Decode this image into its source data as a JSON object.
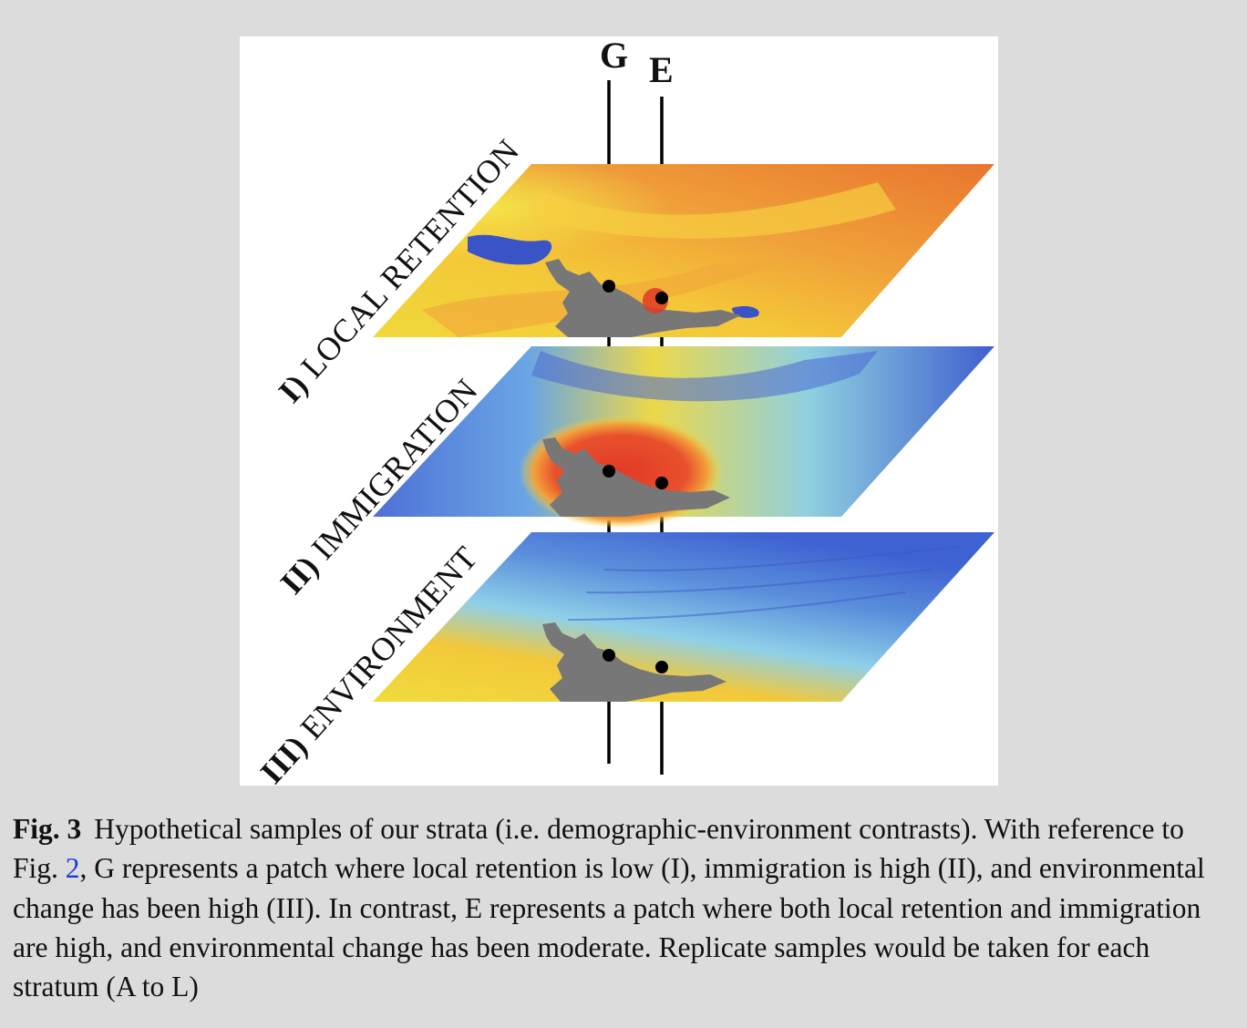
{
  "figure": {
    "markers": {
      "g_label": "G",
      "e_label": "E"
    },
    "layers": [
      {
        "numeral": "I)",
        "name": "LOCAL RETENTION"
      },
      {
        "numeral": "II)",
        "name": "IMMIGRATION"
      },
      {
        "numeral": "III)",
        "name": "ENVIRONMENT"
      }
    ]
  },
  "caption": {
    "label": "Fig. 3",
    "text_before_ref": "Hypothetical samples of our strata (i.e. demographic-environment contrasts). With reference to Fig. ",
    "ref": "2",
    "text_after_ref": ", G represents a patch where local retention is low (I), immigration is high (II), and environmental change has been high (III). In contrast, E represents a patch where both local retention and immigration are high, and environmental change has been moderate. Replicate samples would be taken for each stratum (A to L)"
  },
  "colors": {
    "caption_link": "#1a3de0",
    "land": "#777777",
    "heat_low": "#3c5bd0",
    "heat_mid": "#f2e23c",
    "heat_high": "#e8412a"
  }
}
